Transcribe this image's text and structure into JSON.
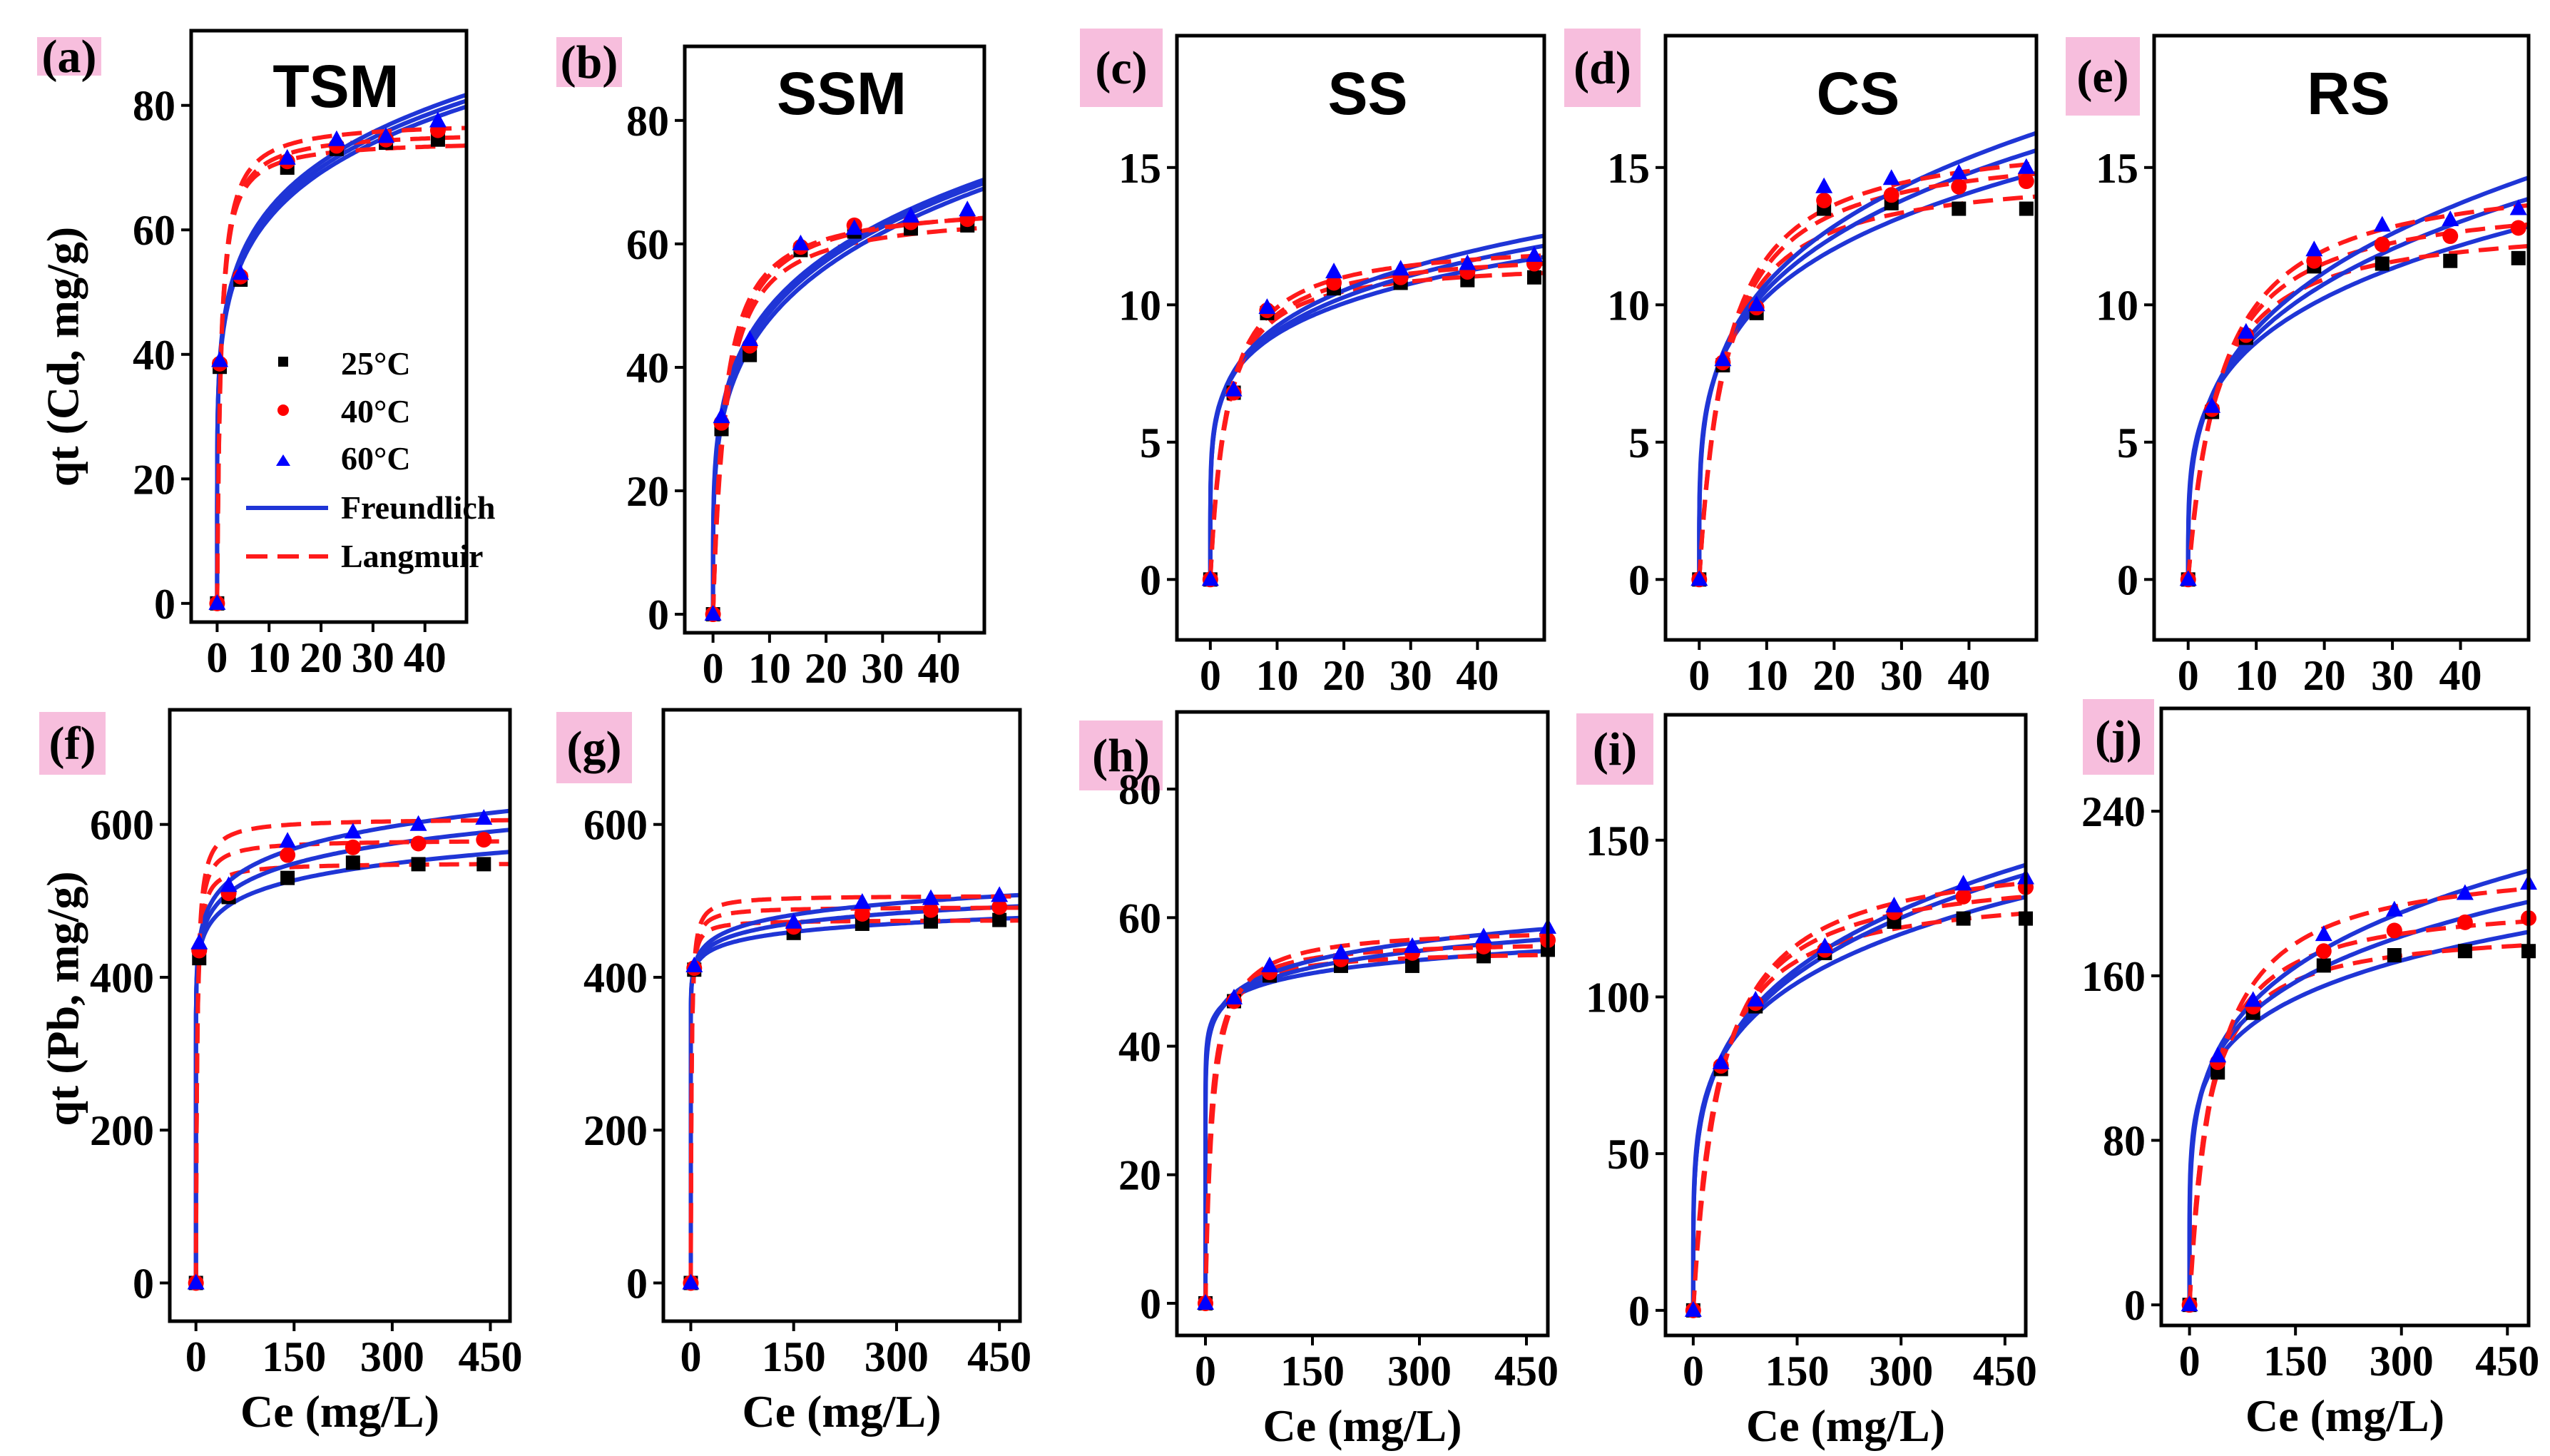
{
  "colors": {
    "t25": "#000000",
    "t40": "#ff0000",
    "t60": "#0000ff",
    "freundlich": "#1f35d6",
    "langmuir": "#ff1a1a",
    "label_bg": "#f7bedd"
  },
  "legend": {
    "entries": [
      "25°C",
      "40°C",
      "60°C",
      "Freundlich",
      "Langmuir"
    ]
  },
  "row_labels": {
    "cd_ylabel": "qt (Cd, mg/g)",
    "pb_ylabel": "qt (Pb, mg/g)"
  },
  "chart_data": [
    {
      "id": "a",
      "label": "(a)",
      "title": "TSM",
      "type": "scatter",
      "xlabel": "",
      "ylabel": "qt (Cd, mg/g)",
      "xlim": [
        -5,
        48
      ],
      "ylim": [
        -3,
        92
      ],
      "xticks": [
        0,
        10,
        20,
        30,
        40
      ],
      "yticks": [
        0,
        20,
        40,
        60,
        80
      ],
      "x": [
        0,
        0.5,
        4.5,
        13.5,
        23,
        32.5,
        42.5
      ],
      "series": [
        {
          "name": "25°C",
          "values": [
            0,
            38,
            52,
            70,
            73,
            74,
            74.5
          ]
        },
        {
          "name": "40°C",
          "values": [
            0,
            38.5,
            52.5,
            71,
            73.5,
            74.5,
            76
          ]
        },
        {
          "name": "60°C",
          "values": [
            0,
            39,
            53,
            71.5,
            74.5,
            75,
            77.5
          ]
        }
      ]
    },
    {
      "id": "b",
      "label": "(b)",
      "title": "SSM",
      "type": "scatter",
      "xlabel": "",
      "ylabel": "",
      "xlim": [
        -5,
        48
      ],
      "ylim": [
        -3,
        92
      ],
      "xticks": [
        0,
        10,
        20,
        30,
        40
      ],
      "yticks": [
        0,
        20,
        40,
        60,
        80
      ],
      "x": [
        0,
        1.5,
        6.5,
        15.5,
        25,
        35,
        45
      ],
      "series": [
        {
          "name": "25°C",
          "values": [
            0,
            30,
            42,
            59,
            62,
            62.5,
            63
          ]
        },
        {
          "name": "40°C",
          "values": [
            0,
            31,
            43.5,
            59.5,
            63,
            63.5,
            64
          ]
        },
        {
          "name": "60°C",
          "values": [
            0,
            32,
            44.5,
            60,
            62.5,
            64.5,
            65.5
          ]
        }
      ]
    },
    {
      "id": "c",
      "label": "(c)",
      "title": "SS",
      "type": "scatter",
      "xlabel": "",
      "ylabel": "",
      "xlim": [
        -5,
        50
      ],
      "ylim": [
        -2.2,
        19.8
      ],
      "xticks": [
        0,
        10,
        20,
        30,
        40
      ],
      "yticks": [
        0,
        5,
        10,
        15
      ],
      "x": [
        0,
        3.5,
        8.5,
        18.5,
        28.5,
        38.5,
        48.5
      ],
      "series": [
        {
          "name": "25°C",
          "values": [
            0,
            6.8,
            9.7,
            10.6,
            10.8,
            10.9,
            11
          ]
        },
        {
          "name": "40°C",
          "values": [
            0,
            6.8,
            9.8,
            10.8,
            11,
            11.2,
            11.5
          ]
        },
        {
          "name": "60°C",
          "values": [
            0,
            6.9,
            9.9,
            11.2,
            11.3,
            11.5,
            11.8
          ]
        }
      ]
    },
    {
      "id": "d",
      "label": "(d)",
      "title": "CS",
      "type": "scatter",
      "xlabel": "",
      "ylabel": "",
      "xlim": [
        -5,
        50
      ],
      "ylim": [
        -2.2,
        19.8
      ],
      "xticks": [
        0,
        10,
        20,
        30,
        40
      ],
      "yticks": [
        0,
        5,
        10,
        15
      ],
      "x": [
        0,
        3.5,
        8.5,
        18.5,
        28.5,
        38.5,
        48.5
      ],
      "series": [
        {
          "name": "25°C",
          "values": [
            0,
            7.8,
            9.7,
            13.5,
            13.7,
            13.5,
            13.5
          ]
        },
        {
          "name": "40°C",
          "values": [
            0,
            7.9,
            9.9,
            13.8,
            14,
            14.3,
            14.5
          ]
        },
        {
          "name": "60°C",
          "values": [
            0,
            8.0,
            10.0,
            14.3,
            14.6,
            14.8,
            15
          ]
        }
      ]
    },
    {
      "id": "e",
      "label": "(e)",
      "title": "RS",
      "type": "scatter",
      "xlabel": "",
      "ylabel": "",
      "xlim": [
        -5,
        50
      ],
      "ylim": [
        -2.2,
        19.8
      ],
      "xticks": [
        0,
        10,
        20,
        30,
        40
      ],
      "yticks": [
        0,
        5,
        10,
        15
      ],
      "x": [
        0,
        3.5,
        8.5,
        18.5,
        28.5,
        38.5,
        48.5
      ],
      "series": [
        {
          "name": "25°C",
          "values": [
            0,
            6.1,
            8.8,
            11.4,
            11.5,
            11.6,
            11.7
          ]
        },
        {
          "name": "40°C",
          "values": [
            0,
            6.2,
            8.9,
            11.6,
            12.2,
            12.5,
            12.8
          ]
        },
        {
          "name": "60°C",
          "values": [
            0,
            6.3,
            9.0,
            12.0,
            12.9,
            13.1,
            13.5
          ]
        }
      ]
    },
    {
      "id": "f",
      "label": "(f)",
      "title": "",
      "type": "scatter",
      "xlabel": "Ce (mg/L)",
      "ylabel": "qt (Pb, mg/g)",
      "xlim": [
        -40,
        480
      ],
      "ylim": [
        -50,
        750
      ],
      "xticks": [
        0,
        150,
        300,
        450
      ],
      "yticks": [
        0,
        200,
        400,
        600
      ],
      "x": [
        0,
        5,
        50,
        140,
        240,
        340,
        440
      ],
      "series": [
        {
          "name": "25°C",
          "values": [
            0,
            425,
            505,
            530,
            550,
            548,
            548
          ]
        },
        {
          "name": "40°C",
          "values": [
            0,
            435,
            510,
            560,
            570,
            575,
            580
          ]
        },
        {
          "name": "60°C",
          "values": [
            0,
            445,
            520,
            578,
            590,
            600,
            608
          ]
        }
      ]
    },
    {
      "id": "g",
      "label": "(g)",
      "title": "",
      "type": "scatter",
      "xlabel": "Ce (mg/L)",
      "ylabel": "",
      "xlim": [
        -40,
        480
      ],
      "ylim": [
        -50,
        750
      ],
      "xticks": [
        0,
        150,
        300,
        450
      ],
      "yticks": [
        0,
        200,
        400,
        600
      ],
      "x": [
        0,
        5,
        150,
        250,
        350,
        450
      ],
      "series": [
        {
          "name": "25°C",
          "values": [
            0,
            410,
            458,
            470,
            473,
            475
          ]
        },
        {
          "name": "40°C",
          "values": [
            0,
            412,
            466,
            483,
            488,
            492
          ]
        },
        {
          "name": "60°C",
          "values": [
            0,
            415,
            472,
            498,
            503,
            507
          ]
        }
      ]
    },
    {
      "id": "h",
      "label": "(h)",
      "title": "",
      "type": "scatter",
      "xlabel": "Ce (mg/L)",
      "ylabel": "",
      "xlim": [
        -40,
        480
      ],
      "ylim": [
        -5,
        92
      ],
      "xticks": [
        0,
        150,
        300,
        450
      ],
      "yticks": [
        0,
        20,
        40,
        60,
        80
      ],
      "x": [
        0,
        40,
        90,
        190,
        290,
        390,
        480
      ],
      "series": [
        {
          "name": "25°C",
          "values": [
            0,
            47,
            51,
            52.5,
            52.5,
            54,
            55
          ]
        },
        {
          "name": "40°C",
          "values": [
            0,
            47,
            51.5,
            53.5,
            54.5,
            55.5,
            56.5
          ]
        },
        {
          "name": "60°C",
          "values": [
            0,
            47.5,
            52.5,
            54.5,
            55.5,
            57,
            58.5
          ]
        }
      ]
    },
    {
      "id": "i",
      "label": "(i)",
      "title": "",
      "type": "scatter",
      "xlabel": "Ce (mg/L)",
      "ylabel": "",
      "xlim": [
        -40,
        480
      ],
      "ylim": [
        -8,
        190
      ],
      "xticks": [
        0,
        150,
        300,
        450
      ],
      "yticks": [
        0,
        50,
        100,
        150
      ],
      "x": [
        0,
        40,
        90,
        190,
        290,
        390,
        480
      ],
      "series": [
        {
          "name": "25°C",
          "values": [
            0,
            77,
            97,
            114,
            124,
            125,
            125
          ]
        },
        {
          "name": "40°C",
          "values": [
            0,
            78,
            98,
            115,
            127,
            132,
            135
          ]
        },
        {
          "name": "60°C",
          "values": [
            0,
            79,
            99,
            116,
            129,
            136,
            138
          ]
        }
      ]
    },
    {
      "id": "j",
      "label": "(j)",
      "title": "",
      "type": "scatter",
      "xlabel": "Ce (mg/L)",
      "ylabel": "",
      "xlim": [
        -40,
        480
      ],
      "ylim": [
        -10,
        290
      ],
      "xticks": [
        0,
        150,
        300,
        450
      ],
      "yticks": [
        0,
        80,
        160,
        240
      ],
      "x": [
        0,
        40,
        90,
        190,
        290,
        390,
        480
      ],
      "series": [
        {
          "name": "25°C",
          "values": [
            0,
            113,
            142,
            165,
            170,
            172,
            172
          ]
        },
        {
          "name": "40°C",
          "values": [
            0,
            118,
            145,
            172,
            182,
            186,
            188
          ]
        },
        {
          "name": "60°C",
          "values": [
            0,
            121,
            148,
            180,
            192,
            200,
            205
          ]
        }
      ]
    }
  ]
}
